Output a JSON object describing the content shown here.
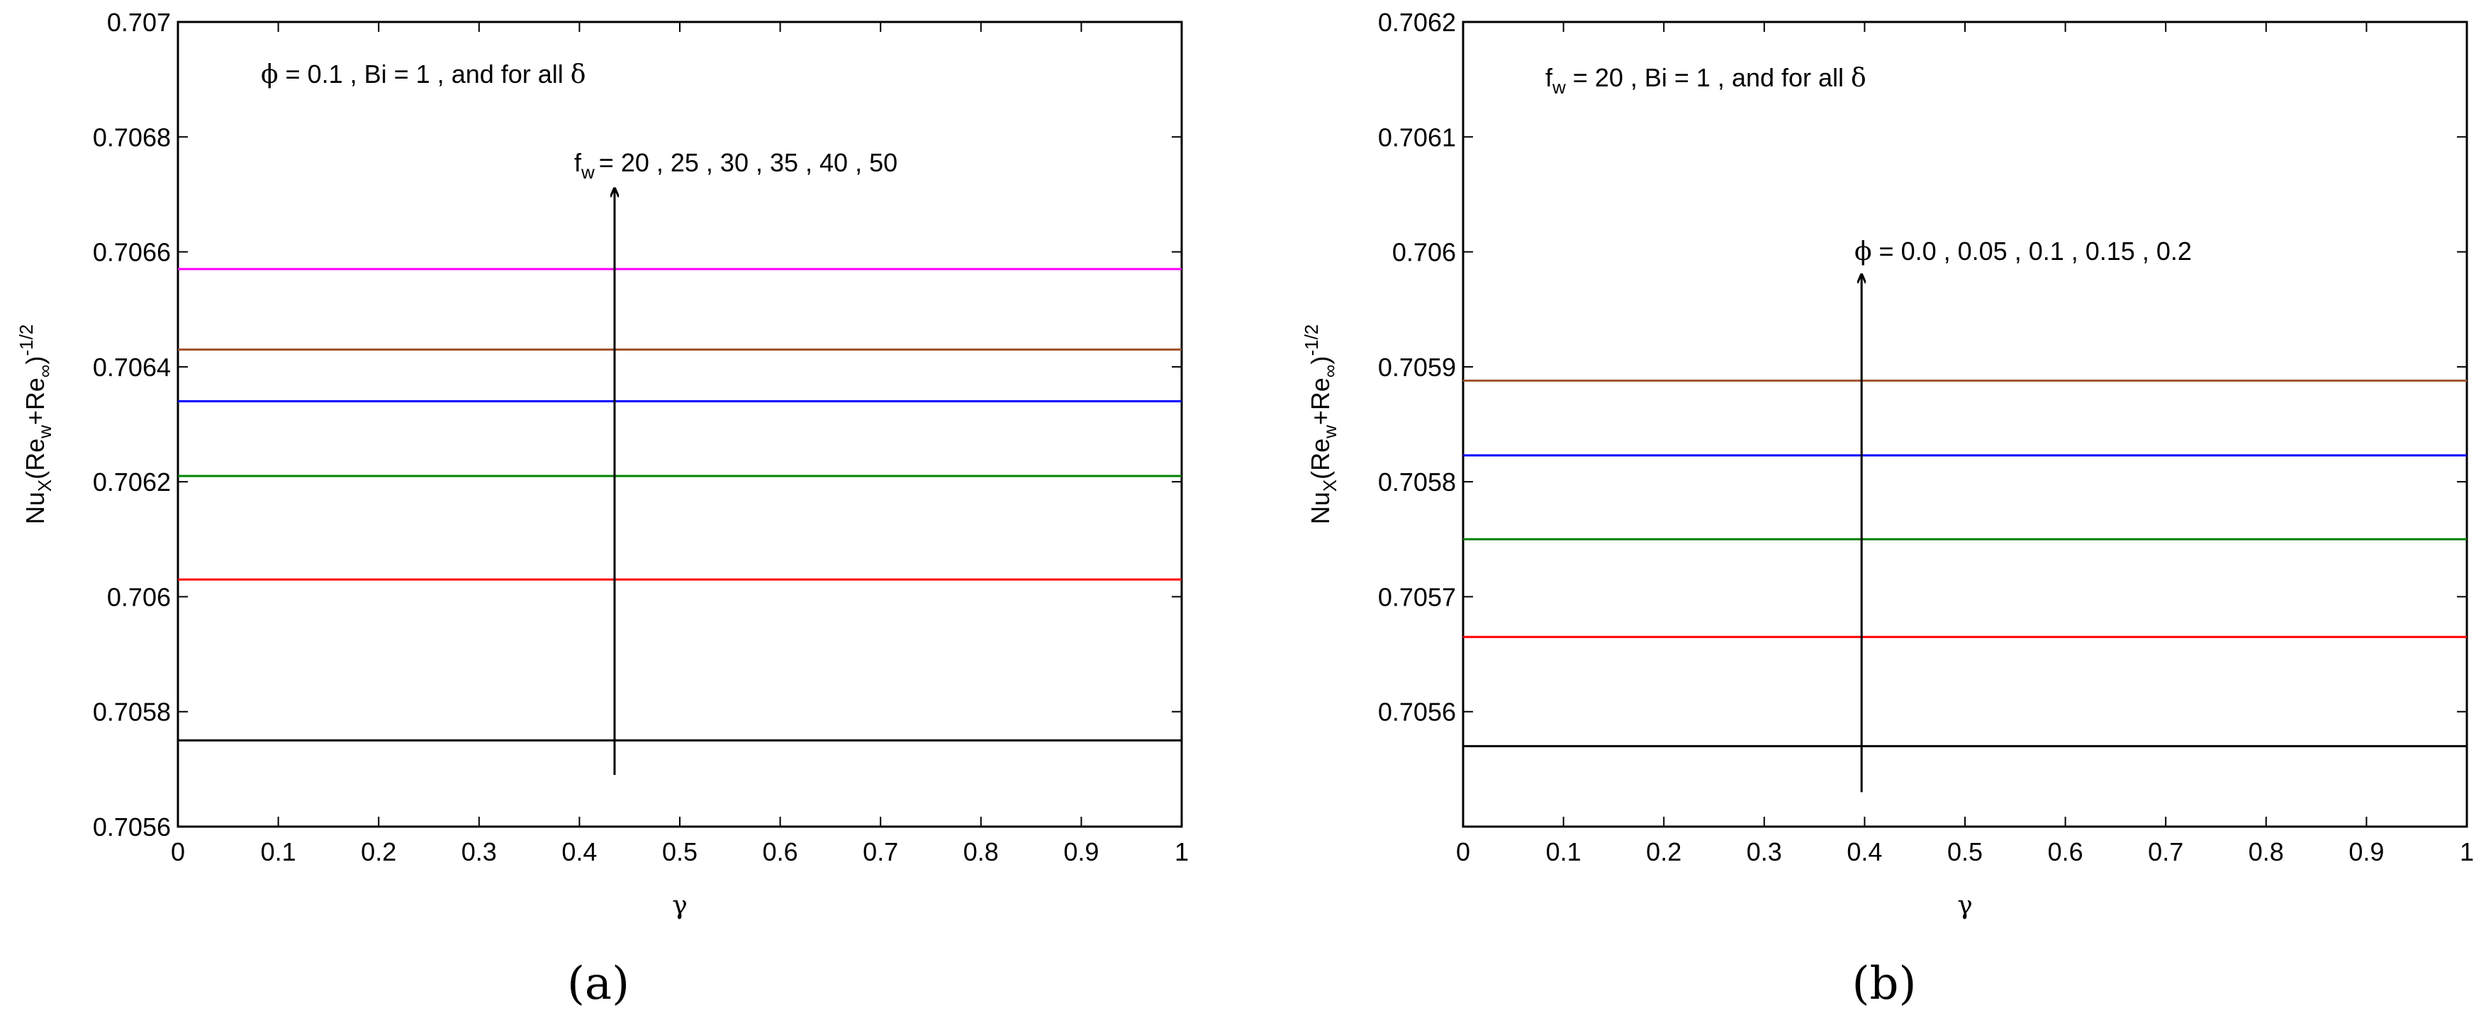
{
  "chart_data": [
    {
      "type": "line",
      "panel_label": "(a)",
      "xlabel": "γ",
      "ylabel_parts": {
        "nu": "Nu",
        "nu_sub": "X",
        "open": "(Re",
        "rew_sub": "w",
        "plus": "+Re",
        "reinf_sub": "∞",
        "close": ")",
        "exp": "-1/2"
      },
      "xlim": [
        0,
        1
      ],
      "ylim": [
        0.7056,
        0.707
      ],
      "xticks": [
        0,
        0.1,
        0.2,
        0.3,
        0.4,
        0.5,
        0.6,
        0.7,
        0.8,
        0.9,
        1
      ],
      "xtick_labels": [
        "0",
        "0.1",
        "0.2",
        "0.3",
        "0.4",
        "0.5",
        "0.6",
        "0.7",
        "0.8",
        "0.9",
        "1"
      ],
      "yticks": [
        0.7056,
        0.7058,
        0.706,
        0.7062,
        0.7064,
        0.7066,
        0.7068,
        0.707
      ],
      "ytick_labels": [
        "0.7056",
        "0.7058",
        "0.706",
        "0.7062",
        "0.7064",
        "0.7066",
        "0.7068",
        "0.707"
      ],
      "series": [
        {
          "color": "#000000",
          "x": [
            0,
            1
          ],
          "y": [
            0.70575,
            0.70575
          ]
        },
        {
          "color": "#ff0000",
          "x": [
            0,
            1
          ],
          "y": [
            0.70603,
            0.70603
          ]
        },
        {
          "color": "#008000",
          "x": [
            0,
            1
          ],
          "y": [
            0.70621,
            0.70621
          ]
        },
        {
          "color": "#0000ff",
          "x": [
            0,
            1
          ],
          "y": [
            0.70634,
            0.70634
          ]
        },
        {
          "color": "#a0522d",
          "x": [
            0,
            1
          ],
          "y": [
            0.70643,
            0.70643
          ]
        },
        {
          "color": "#ff00ff",
          "x": [
            0,
            1
          ],
          "y": [
            0.70657,
            0.70657
          ]
        }
      ],
      "annotations": {
        "condition": {
          "phi_sym": "ϕ",
          "text": " = 0.1  , Bi = 1 , and for all ",
          "delta": "δ"
        },
        "arrow_label": {
          "var": "f",
          "sub": "w",
          "text": "=  20 , 25 , 30 , 35 , 40 , 50"
        },
        "arrow": {
          "x": 0.435,
          "y_from": 0.70569,
          "y_to": 0.70671
        }
      }
    },
    {
      "type": "line",
      "panel_label": "(b)",
      "xlabel": "γ",
      "ylabel_parts": {
        "nu": "Nu",
        "nu_sub": "X",
        "open": "(Re",
        "rew_sub": "w",
        "plus": "+Re",
        "reinf_sub": "∞",
        "close": ")",
        "exp": "-1/2"
      },
      "xlim": [
        0,
        1
      ],
      "ylim": [
        0.7055,
        0.7062
      ],
      "xticks": [
        0,
        0.1,
        0.2,
        0.3,
        0.4,
        0.5,
        0.6,
        0.7,
        0.8,
        0.9,
        1
      ],
      "xtick_labels": [
        "0",
        "0.1",
        "0.2",
        "0.3",
        "0.4",
        "0.5",
        "0.6",
        "0.7",
        "0.8",
        "0.9",
        "1"
      ],
      "yticks": [
        0.7056,
        0.7057,
        0.7058,
        0.7059,
        0.706,
        0.7061,
        0.7062
      ],
      "ytick_labels": [
        "0.7056",
        "0.7057",
        "0.7058",
        "0.7059",
        "0.706",
        "0.7061",
        "0.7062"
      ],
      "series": [
        {
          "color": "#000000",
          "x": [
            0,
            1
          ],
          "y": [
            0.70557,
            0.70557
          ]
        },
        {
          "color": "#ff0000",
          "x": [
            0,
            1
          ],
          "y": [
            0.705665,
            0.705665
          ]
        },
        {
          "color": "#008000",
          "x": [
            0,
            1
          ],
          "y": [
            0.70575,
            0.70575
          ]
        },
        {
          "color": "#0000ff",
          "x": [
            0,
            1
          ],
          "y": [
            0.705823,
            0.705823
          ]
        },
        {
          "color": "#a0522d",
          "x": [
            0,
            1
          ],
          "y": [
            0.705888,
            0.705888
          ]
        }
      ],
      "annotations": {
        "condition": {
          "var": "f",
          "sub": "w",
          "text": " = 20  , Bi = 1 , and for all ",
          "delta": "δ"
        },
        "arrow_label": {
          "phi_sym": "ϕ",
          "text": " = 0.0 , 0.05 , 0.1 , 0.15 , 0.2"
        },
        "arrow": {
          "x": 0.397,
          "y_from": 0.70553,
          "y_to": 0.70598
        }
      }
    }
  ]
}
